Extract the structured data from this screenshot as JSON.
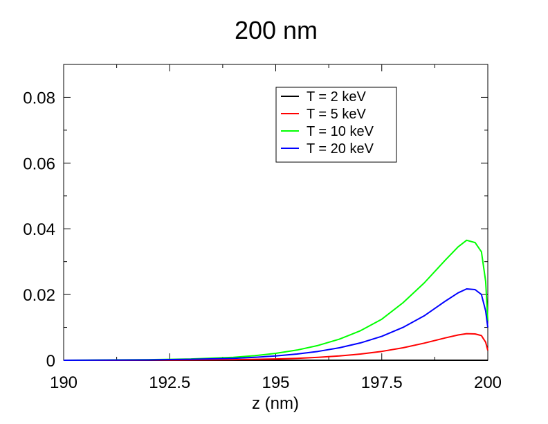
{
  "chart_data": {
    "type": "line",
    "title": "200 nm",
    "xlabel": "z (nm)",
    "ylabel": "",
    "xlim": [
      190,
      200
    ],
    "ylim": [
      0,
      0.09
    ],
    "xticks": [
      190,
      192.5,
      195,
      197.5,
      200
    ],
    "xtick_labels": [
      "190",
      "192.5",
      "195",
      "197.5",
      "200"
    ],
    "yticks": [
      0,
      0.02,
      0.04,
      0.06,
      0.08
    ],
    "ytick_labels": [
      "0",
      "0.02",
      "0.04",
      "0.06",
      "0.08"
    ],
    "legend_position": "top-right",
    "series": [
      {
        "name": "T = 2 keV",
        "color": "#000000",
        "x": [
          190,
          192,
          194,
          196,
          198,
          199,
          199.5,
          199.9,
          200
        ],
        "y": [
          0,
          0,
          0,
          0,
          0,
          0,
          0,
          0,
          0
        ]
      },
      {
        "name": "T = 5 keV",
        "color": "#ff0000",
        "x": [
          190,
          192,
          193,
          194,
          195,
          195.5,
          196,
          196.5,
          197,
          197.5,
          198,
          198.5,
          199,
          199.3,
          199.5,
          199.7,
          199.85,
          199.95,
          200
        ],
        "y": [
          0,
          5e-05,
          0.0001,
          0.0002,
          0.0004,
          0.0006,
          0.0009,
          0.0013,
          0.0019,
          0.0027,
          0.0038,
          0.0052,
          0.0068,
          0.0077,
          0.0081,
          0.008,
          0.0075,
          0.0055,
          0.003
        ]
      },
      {
        "name": "T = 10 keV",
        "color": "#00ff00",
        "x": [
          190,
          191,
          192,
          193,
          194,
          194.5,
          195,
          195.5,
          196,
          196.5,
          197,
          197.5,
          198,
          198.5,
          199,
          199.3,
          199.5,
          199.7,
          199.85,
          199.95,
          200
        ],
        "y": [
          0,
          0.0001,
          0.0002,
          0.0004,
          0.0009,
          0.0014,
          0.0021,
          0.0031,
          0.0045,
          0.0064,
          0.009,
          0.0125,
          0.0175,
          0.0235,
          0.0305,
          0.0345,
          0.0365,
          0.0358,
          0.033,
          0.024,
          0.012
        ]
      },
      {
        "name": "T = 20 keV",
        "color": "#0000ff",
        "x": [
          190,
          191,
          192,
          193,
          194,
          194.5,
          195,
          195.5,
          196,
          196.5,
          197,
          197.5,
          198,
          198.5,
          199,
          199.3,
          199.5,
          199.7,
          199.85,
          199.95,
          200
        ],
        "y": [
          0,
          5e-05,
          0.0001,
          0.0003,
          0.0006,
          0.0009,
          0.0013,
          0.0019,
          0.0027,
          0.0038,
          0.0053,
          0.0073,
          0.01,
          0.0135,
          0.018,
          0.0205,
          0.0217,
          0.0215,
          0.02,
          0.015,
          0.01
        ]
      }
    ]
  }
}
